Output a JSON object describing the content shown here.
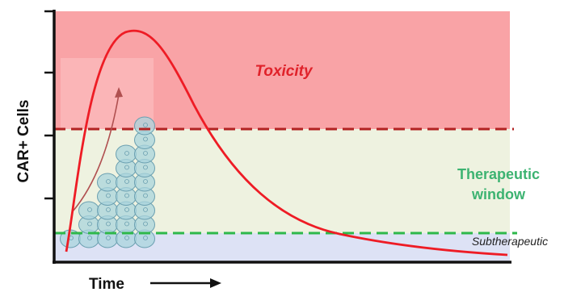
{
  "axes": {
    "ylabel": "CAR+ Cells",
    "xlabel": "Time"
  },
  "zones": {
    "toxicity": {
      "label": "Toxicity",
      "fill": "#f9a3a6",
      "text_color": "#e0222a"
    },
    "therapeutic": {
      "label_line1": "Therapeutic",
      "label_line2": "window",
      "fill": "#eef2e0",
      "text_color": "#3cb371"
    },
    "subtherapeutic": {
      "label": "Subtherapeutic",
      "fill": "#dde2f5",
      "text_color": "#222222"
    }
  },
  "thresholds": {
    "upper_line_color": "#b22222",
    "lower_line_color": "#2eb84a"
  },
  "curve": {
    "color": "#ee1c25"
  },
  "cells": {
    "column_heights": [
      1,
      3,
      5,
      7,
      9
    ],
    "fill": "#a9d4dc",
    "stroke": "#6a9fb0"
  }
}
